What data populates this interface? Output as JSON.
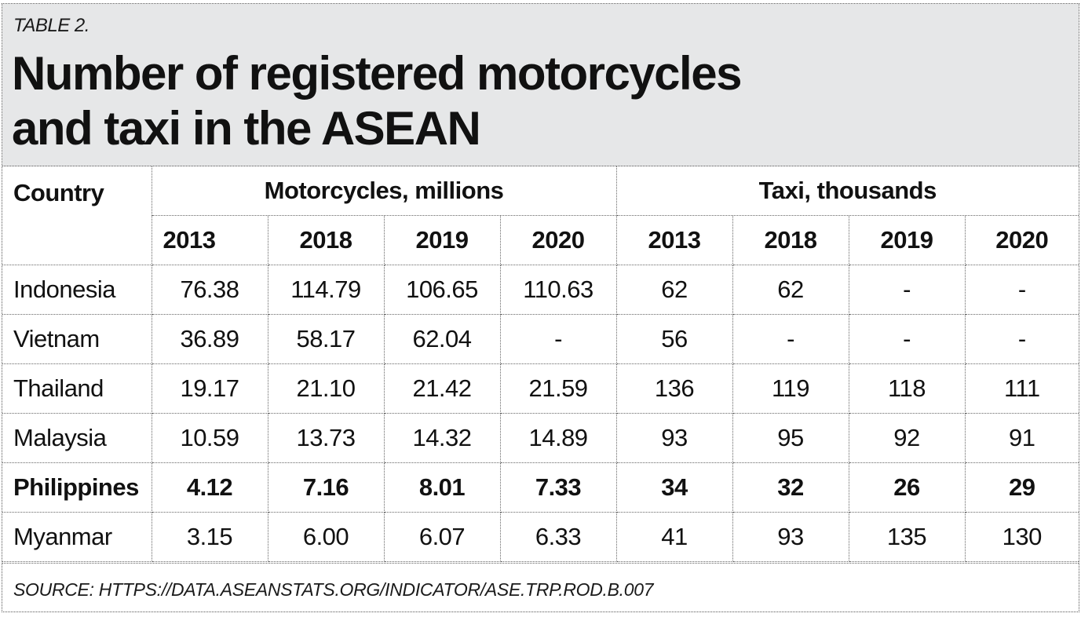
{
  "label": "TABLE 2.",
  "title_line1": "Number of registered motorcycles",
  "title_line2": "and taxi in the ASEAN",
  "columns": {
    "country": "Country",
    "motorcycles_group": "Motorcycles, millions",
    "taxi_group": "Taxi, thousands",
    "years": [
      "2013",
      "2018",
      "2019",
      "2020",
      "2013",
      "2018",
      "2019",
      "2020"
    ]
  },
  "rows": [
    {
      "country": "Indonesia",
      "values": [
        "76.38",
        "114.79",
        "106.65",
        "110.63",
        "62",
        "62",
        "-",
        "-"
      ],
      "highlight": false
    },
    {
      "country": "Vietnam",
      "values": [
        "36.89",
        "58.17",
        "62.04",
        "-",
        "56",
        "-",
        "-",
        "-"
      ],
      "highlight": false
    },
    {
      "country": "Thailand",
      "values": [
        "19.17",
        "21.10",
        "21.42",
        "21.59",
        "136",
        "119",
        "118",
        "111"
      ],
      "highlight": false
    },
    {
      "country": "Malaysia",
      "values": [
        "10.59",
        "13.73",
        "14.32",
        "14.89",
        "93",
        "95",
        "92",
        "91"
      ],
      "highlight": false
    },
    {
      "country": "Philippines",
      "values": [
        "4.12",
        "7.16",
        "8.01",
        "7.33",
        "34",
        "32",
        "26",
        "29"
      ],
      "highlight": true
    },
    {
      "country": "Myanmar",
      "values": [
        "3.15",
        "6.00",
        "6.07",
        "6.33",
        "41",
        "93",
        "135",
        "130"
      ],
      "highlight": false
    }
  ],
  "source": "SOURCE: HTTPS://DATA.ASEANSTATS.ORG/INDICATOR/ASE.TRP.ROD.B.007",
  "colors": {
    "header_background": "#e6e7e8",
    "text": "#111111",
    "rule": "#666666"
  }
}
